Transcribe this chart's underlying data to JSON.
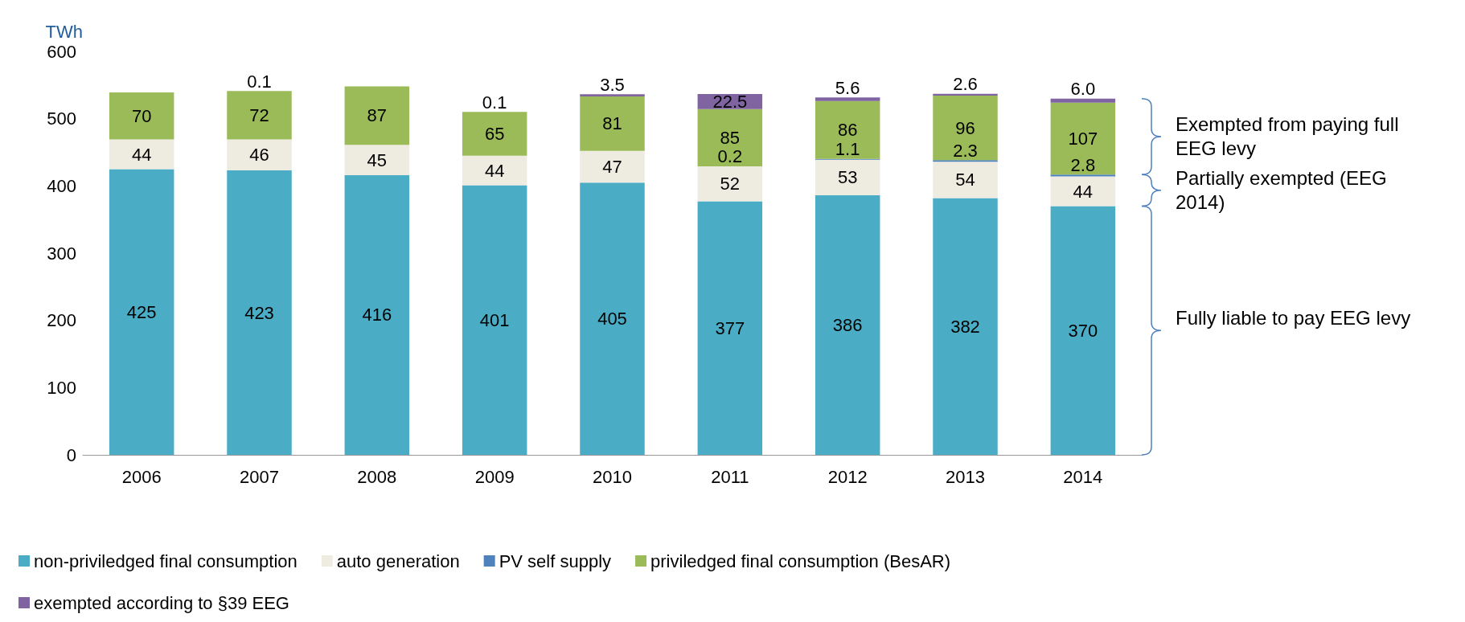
{
  "chart_data": {
    "type": "bar",
    "stacked": true,
    "ylabel": "TWh",
    "categories": [
      "2006",
      "2007",
      "2008",
      "2009",
      "2010",
      "2011",
      "2012",
      "2013",
      "2014"
    ],
    "series": [
      {
        "name": "non-priviledged final consumption",
        "color": "#4bacc6",
        "values": [
          425,
          423,
          416,
          401,
          405,
          377,
          386,
          382,
          370
        ],
        "value_labels": [
          "425",
          "423",
          "416",
          "401",
          "405",
          "377",
          "386",
          "382",
          "370"
        ]
      },
      {
        "name": "auto generation",
        "color": "#eeece1",
        "values": [
          44,
          46,
          45,
          44,
          47,
          52,
          53,
          54,
          44
        ],
        "value_labels": [
          "44",
          "46",
          "45",
          "44",
          "47",
          "52",
          "53",
          "54",
          "44"
        ]
      },
      {
        "name": "PV self supply",
        "color": "#4f81bd",
        "values": [
          null,
          null,
          null,
          null,
          null,
          0.2,
          1.1,
          2.3,
          2.8
        ],
        "value_labels": [
          null,
          null,
          null,
          null,
          null,
          "0.2",
          "1.1",
          "2.3",
          "2.8"
        ]
      },
      {
        "name": "priviledged final consumption (BesAR)",
        "color": "#9bbb59",
        "values": [
          70,
          72,
          87,
          65,
          81,
          85,
          86,
          96,
          107
        ],
        "value_labels": [
          "70",
          "72",
          "87",
          "65",
          "81",
          "85",
          "86",
          "96",
          "107"
        ]
      },
      {
        "name": "exempted according to §39 EEG",
        "color": "#8064a2",
        "values": [
          null,
          0.1,
          null,
          0.1,
          3.5,
          22.5,
          5.6,
          2.6,
          6.0
        ],
        "value_labels": [
          null,
          "0.1",
          null,
          "0.1",
          "3.5",
          "22.5",
          "5.6",
          "2.6",
          "6.0"
        ]
      }
    ],
    "ylim": [
      0,
      600
    ],
    "yticks": [
      0,
      100,
      200,
      300,
      400,
      500,
      600
    ],
    "grid": false,
    "legend": "bottom left",
    "annotations": [
      "Exempted from paying full EEG levy",
      "Partially exempted (EEG 2014)",
      "Fully liable to pay EEG levy"
    ]
  }
}
